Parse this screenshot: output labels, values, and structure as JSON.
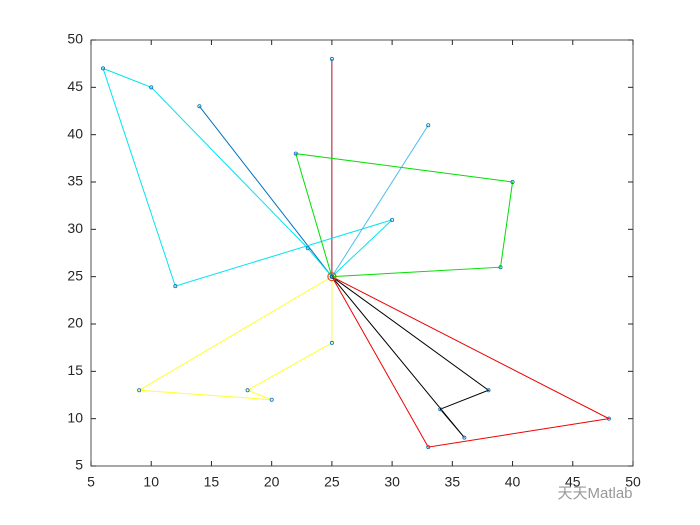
{
  "chart_data": {
    "type": "line",
    "xlim": [
      5,
      50
    ],
    "ylim": [
      5,
      50
    ],
    "xticks": [
      5,
      10,
      15,
      20,
      25,
      30,
      35,
      40,
      45,
      50
    ],
    "yticks": [
      5,
      10,
      15,
      20,
      25,
      30,
      35,
      40,
      45,
      50
    ],
    "marker_color": "#0072bd",
    "depot": {
      "x": 25,
      "y": 25,
      "color": "#d95319"
    },
    "series": [
      {
        "color": "#a2142f",
        "x": [
          25,
          25,
          25
        ],
        "values": [
          25,
          48,
          25
        ]
      },
      {
        "color": "#0072bd",
        "x": [
          25,
          14,
          25
        ],
        "values": [
          25,
          43,
          25
        ]
      },
      {
        "color": "#00e5ee",
        "x": [
          25,
          23,
          10,
          6,
          12,
          30,
          25
        ],
        "values": [
          25,
          28,
          45,
          47,
          24,
          31,
          25
        ]
      },
      {
        "color": "#4dbeee",
        "x": [
          25,
          33,
          25
        ],
        "values": [
          25,
          41,
          25
        ]
      },
      {
        "color": "#00dd00",
        "x": [
          25,
          22,
          40,
          39,
          25
        ],
        "values": [
          25,
          38,
          35,
          26,
          25
        ]
      },
      {
        "color": "#ffff33",
        "x": [
          25,
          9,
          20,
          18,
          25,
          25
        ],
        "values": [
          25,
          13,
          12,
          13,
          18,
          25
        ]
      },
      {
        "color": "#000000",
        "x": [
          25,
          38,
          34,
          36,
          25
        ],
        "values": [
          25,
          13,
          11,
          8,
          25
        ]
      },
      {
        "color": "#ee0000",
        "x": [
          25,
          48,
          33,
          25
        ],
        "values": [
          25,
          10,
          7,
          25
        ]
      }
    ],
    "watermark": "天天Matlab"
  }
}
